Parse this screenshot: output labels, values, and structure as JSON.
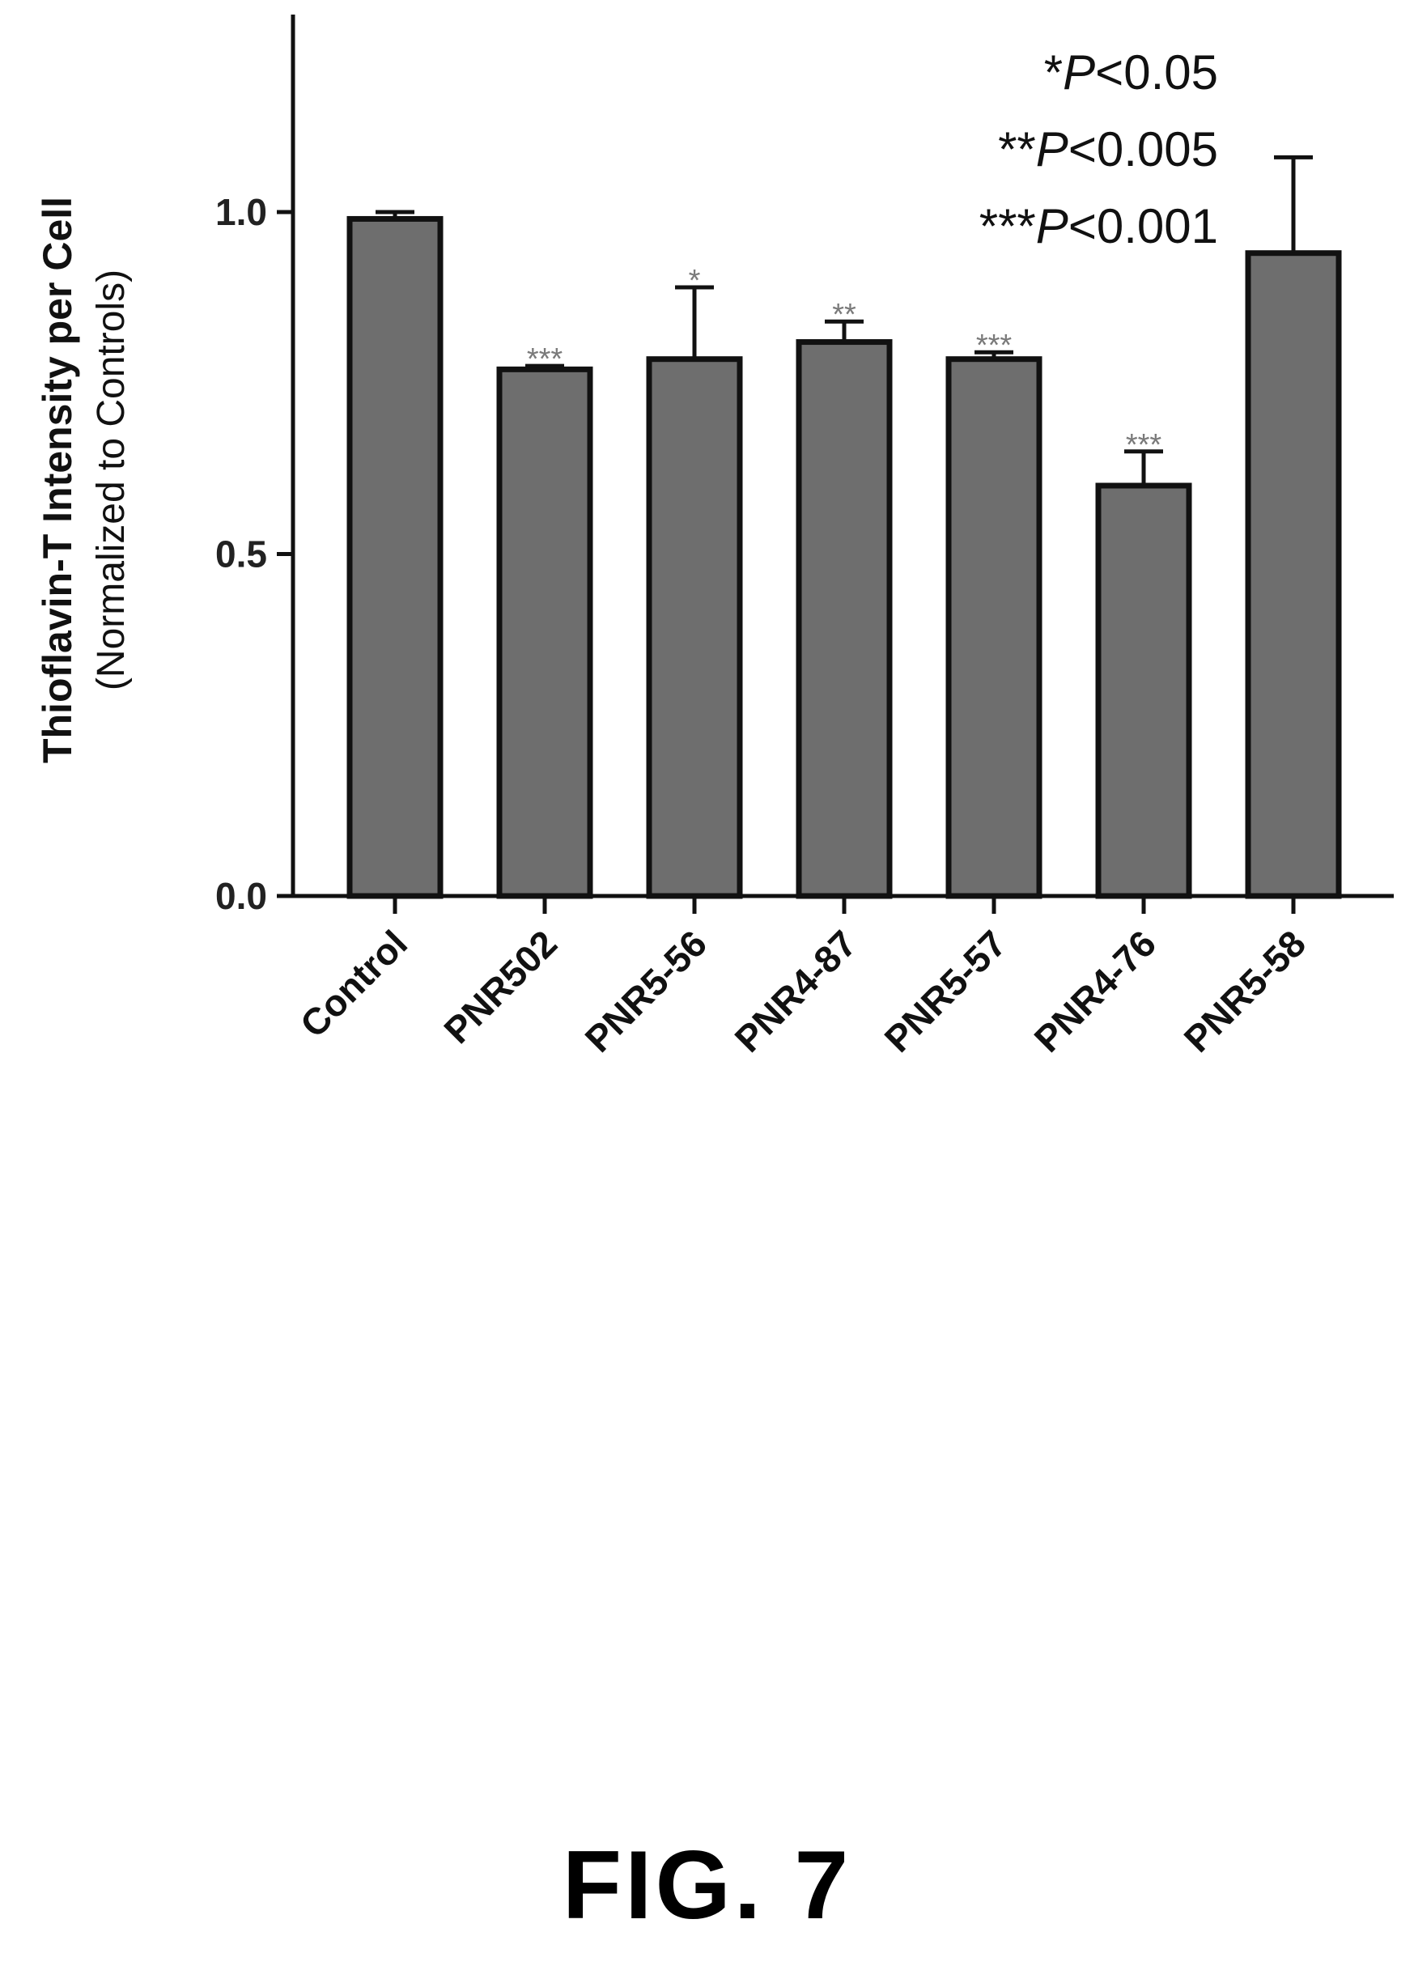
{
  "chart_data": {
    "type": "bar",
    "categories": [
      "Control",
      "PNR502",
      "PNR5-56",
      "PNR4-87",
      "PNR5-57",
      "PNR4-76",
      "PNR5-58"
    ],
    "values": [
      0.99,
      0.77,
      0.785,
      0.81,
      0.785,
      0.6,
      0.94
    ],
    "error_upper": [
      1.0,
      0.775,
      0.89,
      0.84,
      0.795,
      0.65,
      1.08
    ],
    "significance": [
      "",
      "***",
      "*",
      "**",
      "***",
      "***",
      ""
    ],
    "ylabel": "Thioflavin-T Intensity per Cell",
    "ylabel_sub": "(Normalized to Controls)",
    "ylim": [
      0,
      1.28
    ],
    "yticks": [
      "0.0",
      "0.5",
      "1.0"
    ],
    "legend_lines": [
      {
        "stars": "*",
        "italic": "P",
        "rest": "<0.05"
      },
      {
        "stars": "**",
        "italic": "P",
        "rest": "<0.005"
      },
      {
        "stars": "***",
        "italic": "P",
        "rest": "<0.001"
      }
    ],
    "bar_color": "#6e6e6e",
    "edge_color": "#111111"
  },
  "caption": "FIG. 7"
}
